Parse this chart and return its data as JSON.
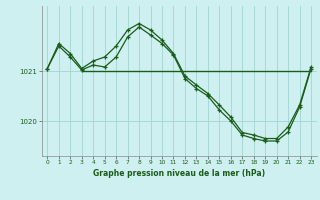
{
  "bg_color": "#cff0f0",
  "grid_color": "#a8d8d8",
  "line_color": "#1a5c1a",
  "xlabel": "Graphe pression niveau de la mer (hPa)",
  "yticks": [
    1020,
    1021
  ],
  "xlim": [
    -0.5,
    23.5
  ],
  "ylim": [
    1019.3,
    1022.3
  ],
  "hours": [
    0,
    1,
    2,
    3,
    4,
    5,
    6,
    7,
    8,
    9,
    10,
    11,
    12,
    13,
    14,
    15,
    16,
    17,
    18,
    19,
    20,
    21,
    22,
    23
  ],
  "series1": [
    1021.05,
    1021.55,
    1021.35,
    1021.05,
    1021.2,
    1021.28,
    1021.5,
    1021.82,
    1021.95,
    1021.82,
    1021.62,
    1021.35,
    1020.9,
    1020.72,
    1020.55,
    1020.32,
    1020.08,
    1019.77,
    1019.72,
    1019.65,
    1019.65,
    1019.88,
    1020.32,
    1021.08
  ],
  "series2_x": [
    3,
    23
  ],
  "series2_y": [
    1021.0,
    1021.0
  ],
  "series3": [
    1021.05,
    1021.5,
    1021.28,
    1021.02,
    1021.12,
    1021.08,
    1021.28,
    1021.68,
    1021.88,
    1021.72,
    1021.55,
    1021.32,
    1020.85,
    1020.65,
    1020.5,
    1020.22,
    1020.0,
    1019.72,
    1019.65,
    1019.6,
    1019.6,
    1019.78,
    1020.28,
    1021.05
  ]
}
